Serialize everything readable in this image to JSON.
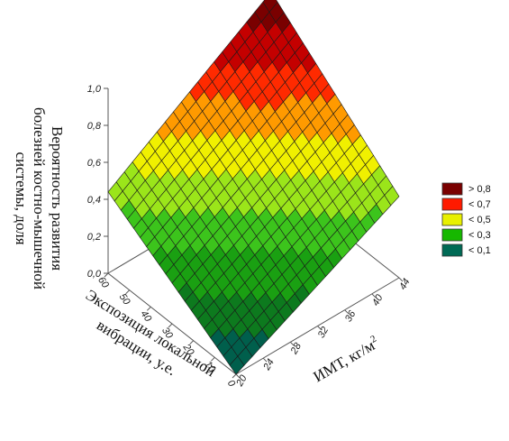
{
  "chart_data": {
    "type": "surface3d",
    "x_axis": {
      "label": "ИМТ, кг/м",
      "label_sup": "2",
      "min": 20,
      "max": 44,
      "ticks": [
        "20",
        "24",
        "28",
        "32",
        "36",
        "40",
        "44"
      ]
    },
    "y_axis": {
      "label_lines": [
        "Экспозиция локальной",
        "вибрации, у.е."
      ],
      "min": 0,
      "max": 60,
      "ticks": [
        "0",
        "10",
        "20",
        "30",
        "40",
        "50",
        "60"
      ]
    },
    "z_axis": {
      "label_lines": [
        "Вероятность развития",
        "болезней костно-мышечной",
        "системы, доля"
      ],
      "min": 0.0,
      "max": 1.0,
      "ticks": [
        "0,0",
        "0,2",
        "0,4",
        "0,6",
        "0,8",
        "1,0"
      ]
    },
    "surface": {
      "z_corners": {
        "x20_y0": 0.0,
        "x44_y0": 0.44,
        "x20_y60": 0.44,
        "x44_y60": 1.0
      },
      "grid_divisions": 20
    },
    "legend": {
      "placement": "right",
      "entries": [
        {
          "label": "> 0,8",
          "color": "#7a0000"
        },
        {
          "label": "< 0,7",
          "color": "#ff1a00"
        },
        {
          "label": "< 0,5",
          "color": "#e8f000"
        },
        {
          "label": "< 0,3",
          "color": "#16b800"
        },
        {
          "label": "< 0,1",
          "color": "#006a55"
        }
      ]
    },
    "color_bands": [
      {
        "min": 0.0,
        "max": 0.1,
        "color": "#005f4c"
      },
      {
        "min": 0.1,
        "max": 0.2,
        "color": "#0d7a1e"
      },
      {
        "min": 0.2,
        "max": 0.3,
        "color": "#1aa012"
      },
      {
        "min": 0.3,
        "max": 0.4,
        "color": "#3cc41c"
      },
      {
        "min": 0.4,
        "max": 0.5,
        "color": "#9be51a"
      },
      {
        "min": 0.5,
        "max": 0.6,
        "color": "#f0f000"
      },
      {
        "min": 0.6,
        "max": 0.7,
        "color": "#ff9a00"
      },
      {
        "min": 0.7,
        "max": 0.8,
        "color": "#ff2a00"
      },
      {
        "min": 0.8,
        "max": 0.9,
        "color": "#c40000"
      },
      {
        "min": 0.9,
        "max": 1.0,
        "color": "#7a0000"
      }
    ]
  }
}
